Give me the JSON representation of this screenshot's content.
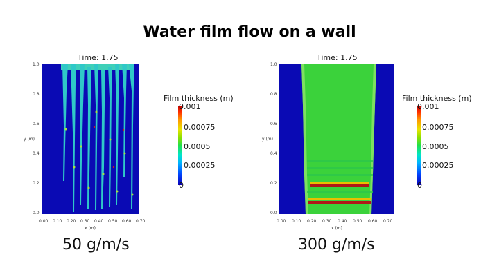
{
  "title": "Water film flow on a wall",
  "panels": [
    {
      "time_label": "Time: 1.75",
      "caption": "50 g/m/s",
      "x_ticks": [
        "0.00",
        "0.10",
        "0.20",
        "0.30",
        "0.40",
        "0.50",
        "0.60",
        "0.70"
      ],
      "y_ticks": [
        "0.0",
        "0.2",
        "0.4",
        "0.6",
        "0.8",
        "1.0"
      ],
      "xlabel": "x (m)",
      "ylabel": "y (m)",
      "colorbar": {
        "title": "Film thickness (m)",
        "labels": [
          "0.001",
          "0.00075",
          "0.0005",
          "0.00025",
          "0"
        ]
      }
    },
    {
      "time_label": "Time: 1.75",
      "caption": "300 g/m/s",
      "x_ticks": [
        "0.00",
        "0.10",
        "0.20",
        "0.30",
        "0.40",
        "0.50",
        "0.60",
        "0.70"
      ],
      "y_ticks": [
        "0.0",
        "0.2",
        "0.4",
        "0.6",
        "0.8",
        "1.0"
      ],
      "xlabel": "x (m)",
      "ylabel": "y (m)",
      "colorbar": {
        "title": "Film thickness (m)",
        "labels": [
          "0.001",
          "0.00075",
          "0.0005",
          "0.00025",
          "0"
        ]
      }
    }
  ],
  "colors": {
    "background_blue": "#0a0ab4",
    "film_green": "#3bd23b",
    "rivulet_cyan": "#3fe0c8",
    "accent_red": "#c81e1e"
  }
}
